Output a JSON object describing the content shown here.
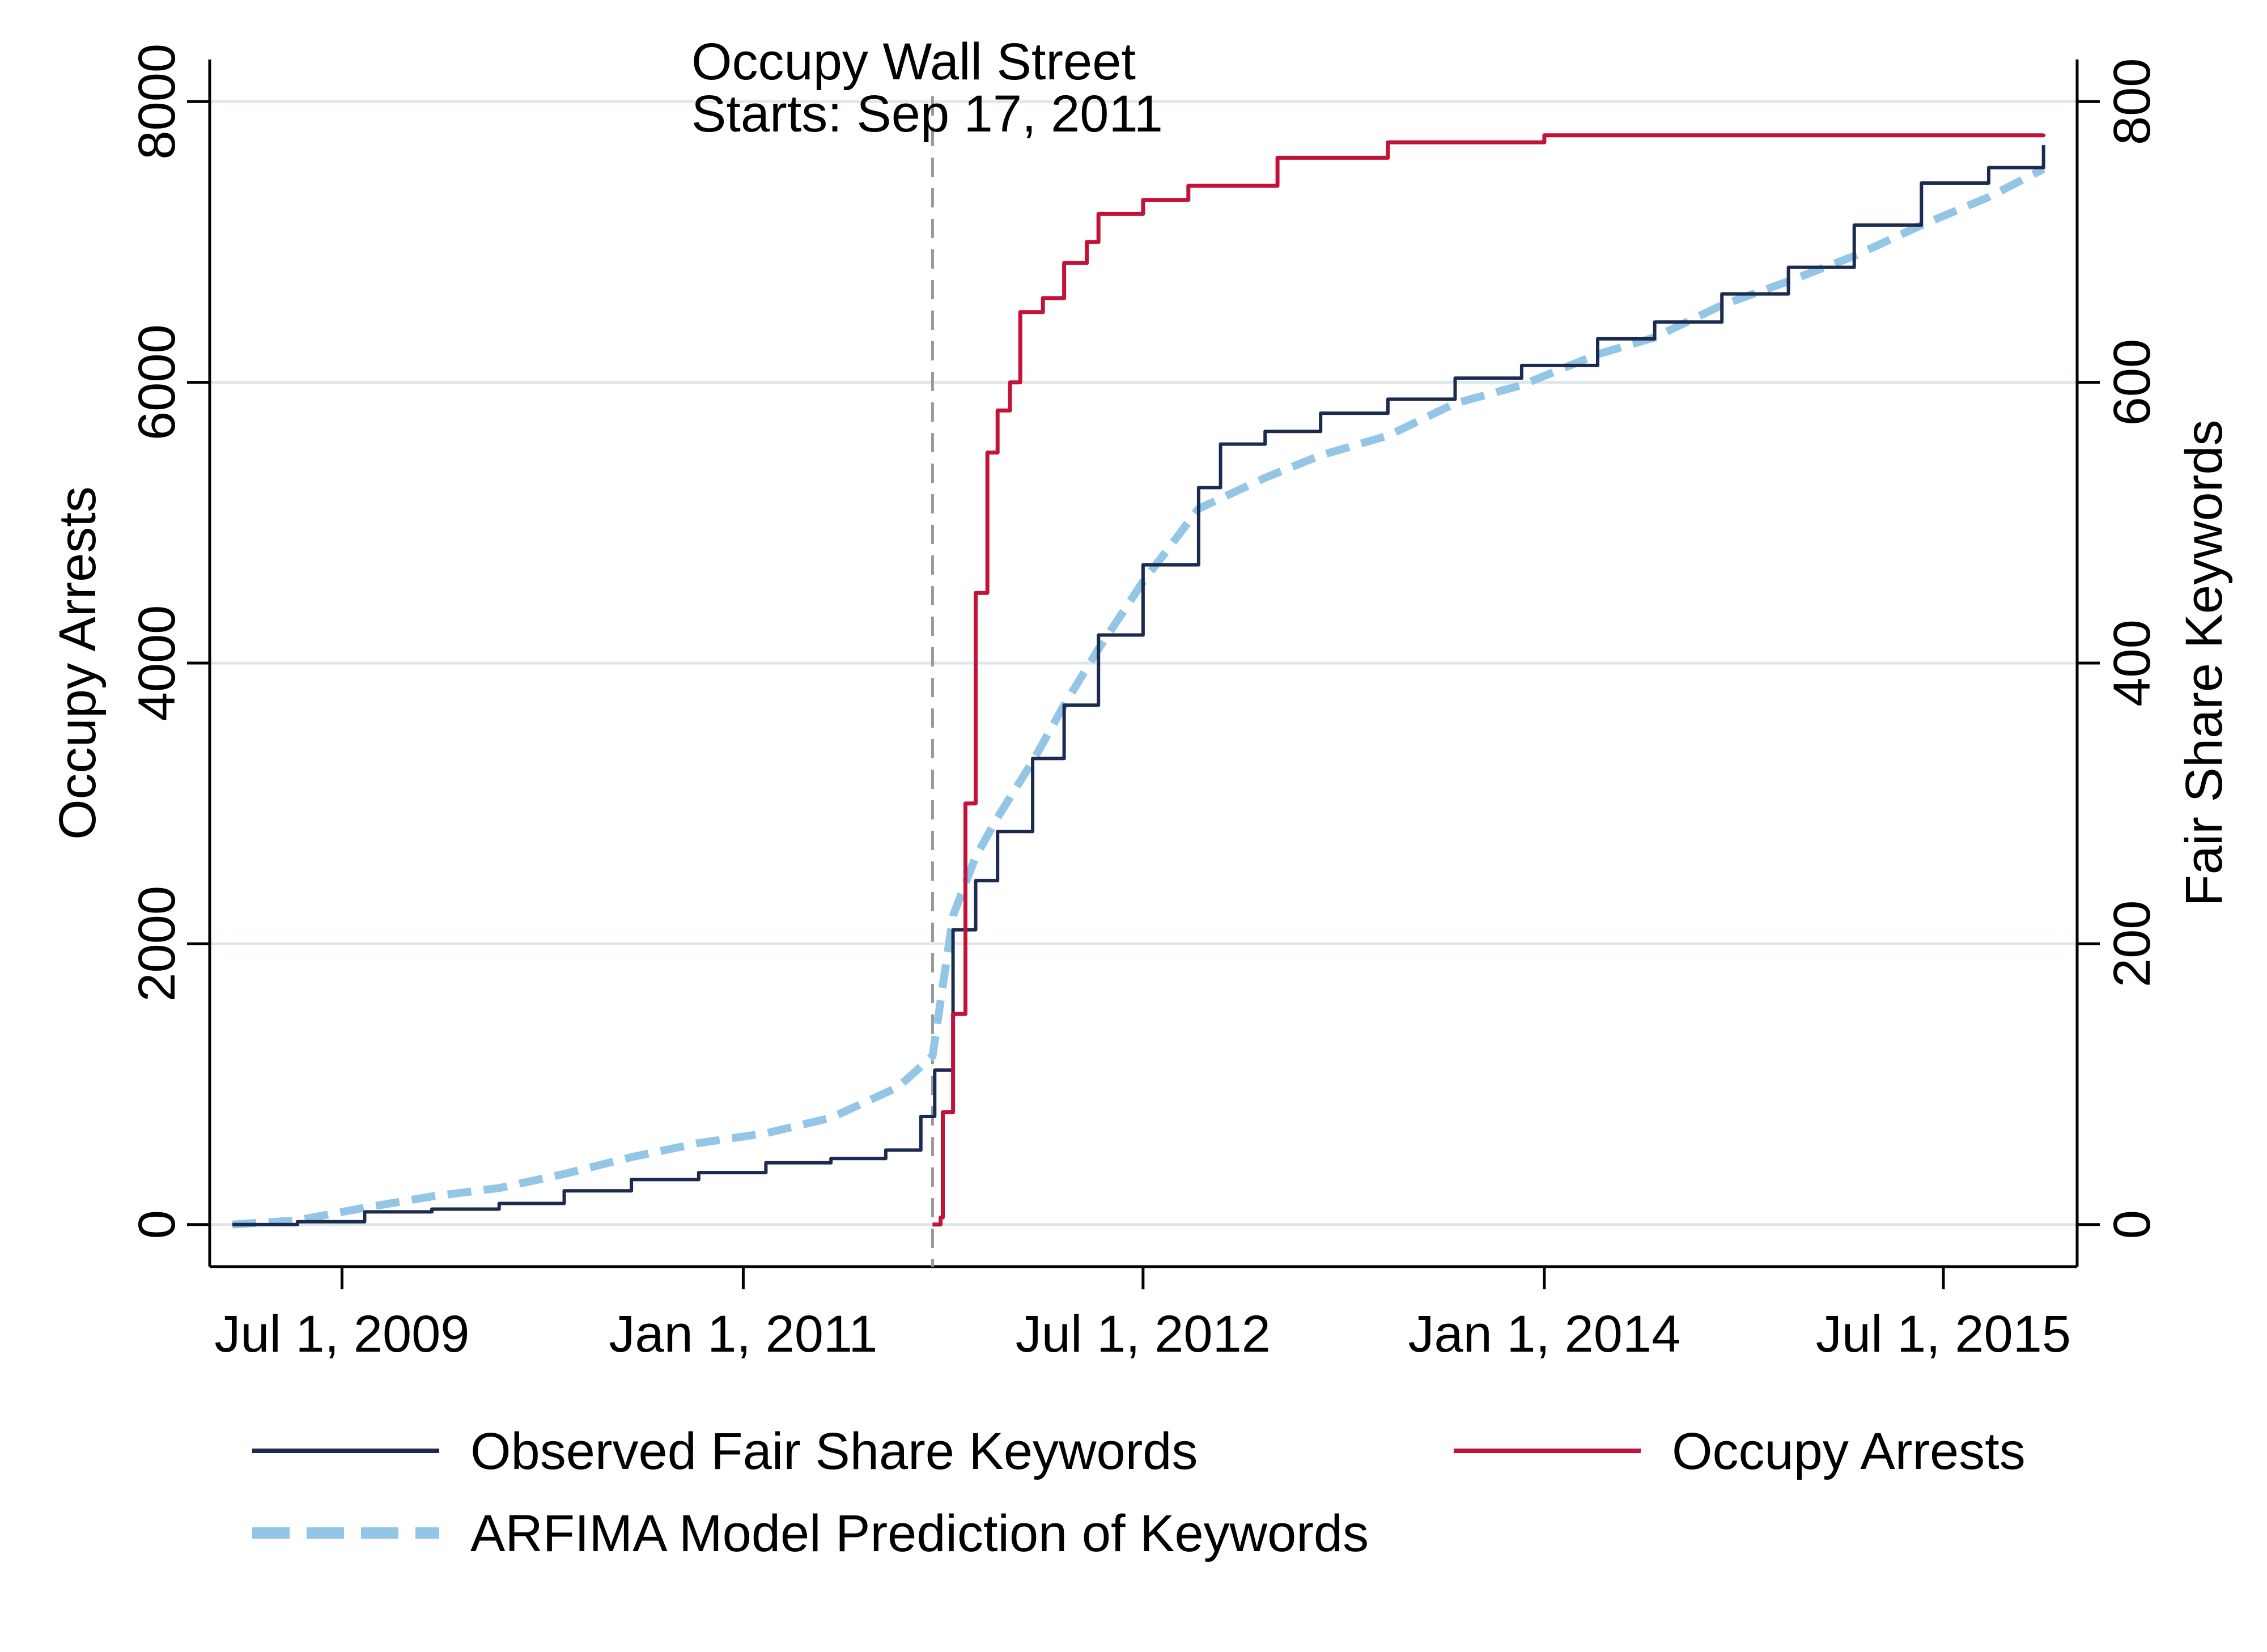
{
  "chart_data": {
    "type": "line",
    "annotation": {
      "line1": "Occupy  Wall  Street",
      "line2": "Starts: Sep 17, 2011",
      "date": "2011-09-17"
    },
    "x_axis": {
      "type": "date",
      "range": [
        "2009-01-01",
        "2015-12-31"
      ],
      "ticks": [
        {
          "date": "2009-07-01",
          "label": "Jul 1, 2009"
        },
        {
          "date": "2011-01-01",
          "label": "Jan 1, 2011"
        },
        {
          "date": "2012-07-01",
          "label": "Jul 1, 2012"
        },
        {
          "date": "2014-01-01",
          "label": "Jan 1, 2014"
        },
        {
          "date": "2015-07-01",
          "label": "Jul 1, 2015"
        }
      ]
    },
    "y_left": {
      "label": "Occupy Arrests",
      "ticks": [
        0,
        2000,
        4000,
        6000,
        8000
      ],
      "range": [
        -300,
        8300
      ]
    },
    "y_right": {
      "label": "Fair Share Keywords",
      "ticks": [
        0,
        200,
        400,
        600,
        800
      ],
      "range": [
        -30,
        830
      ]
    },
    "grid": true,
    "legend_position": "bottom",
    "legend": [
      {
        "series": "observed",
        "label": "Observed Fair Share Keywords"
      },
      {
        "series": "arrests",
        "label": "Occupy Arrests"
      },
      {
        "series": "arfima",
        "label": "ARFIMA Model Prediction of Keywords"
      }
    ],
    "series": [
      {
        "id": "observed",
        "name": "Observed Fair Share Keywords",
        "axis": "right",
        "color": "#1b2a4e",
        "style": "solid",
        "points": [
          [
            "2009-02-01",
            0
          ],
          [
            "2009-05-01",
            2
          ],
          [
            "2009-08-01",
            9
          ],
          [
            "2009-11-01",
            11
          ],
          [
            "2010-02-01",
            15
          ],
          [
            "2010-05-01",
            24
          ],
          [
            "2010-08-01",
            32
          ],
          [
            "2010-11-01",
            37
          ],
          [
            "2011-02-01",
            44
          ],
          [
            "2011-05-01",
            47
          ],
          [
            "2011-07-15",
            53
          ],
          [
            "2011-09-01",
            77
          ],
          [
            "2011-09-20",
            110
          ],
          [
            "2011-10-15",
            210
          ],
          [
            "2011-11-15",
            245
          ],
          [
            "2011-12-15",
            280
          ],
          [
            "2012-02-01",
            332
          ],
          [
            "2012-03-15",
            370
          ],
          [
            "2012-05-01",
            420
          ],
          [
            "2012-07-01",
            470
          ],
          [
            "2012-09-15",
            525
          ],
          [
            "2012-10-15",
            556
          ],
          [
            "2012-12-15",
            565
          ],
          [
            "2013-03-01",
            578
          ],
          [
            "2013-06-01",
            588
          ],
          [
            "2013-09-01",
            603
          ],
          [
            "2013-12-01",
            612
          ],
          [
            "2014-03-15",
            631
          ],
          [
            "2014-06-01",
            643
          ],
          [
            "2014-09-01",
            663
          ],
          [
            "2014-12-01",
            682
          ],
          [
            "2015-03-01",
            712
          ],
          [
            "2015-06-01",
            742
          ],
          [
            "2015-09-01",
            753
          ],
          [
            "2015-11-15",
            769
          ]
        ]
      },
      {
        "id": "arrests",
        "name": "Occupy Arrests",
        "axis": "left",
        "color": "#c2123a",
        "style": "solid",
        "points": [
          [
            "2011-09-17",
            0
          ],
          [
            "2011-09-28",
            50
          ],
          [
            "2011-10-01",
            800
          ],
          [
            "2011-10-15",
            1500
          ],
          [
            "2011-11-01",
            3000
          ],
          [
            "2011-11-15",
            4500
          ],
          [
            "2011-12-01",
            5500
          ],
          [
            "2011-12-15",
            5800
          ],
          [
            "2012-01-01",
            6000
          ],
          [
            "2012-01-15",
            6500
          ],
          [
            "2012-02-15",
            6600
          ],
          [
            "2012-03-15",
            6850
          ],
          [
            "2012-04-15",
            7000
          ],
          [
            "2012-05-01",
            7200
          ],
          [
            "2012-07-01",
            7300
          ],
          [
            "2012-09-01",
            7400
          ],
          [
            "2013-01-01",
            7600
          ],
          [
            "2013-06-01",
            7710
          ],
          [
            "2014-01-01",
            7760
          ],
          [
            "2015-11-15",
            7770
          ]
        ]
      },
      {
        "id": "arfima",
        "name": "ARFIMA Model Prediction of Keywords",
        "axis": "right",
        "color": "#93c6e6",
        "style": "dashed",
        "points": [
          [
            "2009-02-01",
            0
          ],
          [
            "2009-05-01",
            3
          ],
          [
            "2009-08-01",
            12
          ],
          [
            "2009-11-01",
            20
          ],
          [
            "2010-02-01",
            26
          ],
          [
            "2010-05-01",
            36
          ],
          [
            "2010-08-01",
            48
          ],
          [
            "2010-11-01",
            58
          ],
          [
            "2011-02-01",
            65
          ],
          [
            "2011-05-01",
            76
          ],
          [
            "2011-08-01",
            98
          ],
          [
            "2011-09-17",
            120
          ],
          [
            "2011-10-15",
            220
          ],
          [
            "2011-11-15",
            262
          ],
          [
            "2011-12-15",
            290
          ],
          [
            "2012-02-01",
            330
          ],
          [
            "2012-03-15",
            370
          ],
          [
            "2012-05-01",
            410
          ],
          [
            "2012-07-01",
            458
          ],
          [
            "2012-09-15",
            510
          ],
          [
            "2012-12-15",
            532
          ],
          [
            "2013-03-01",
            548
          ],
          [
            "2013-06-01",
            562
          ],
          [
            "2013-09-01",
            585
          ],
          [
            "2013-12-01",
            598
          ],
          [
            "2014-03-15",
            620
          ],
          [
            "2014-06-01",
            632
          ],
          [
            "2014-09-01",
            655
          ],
          [
            "2014-12-01",
            672
          ],
          [
            "2015-03-01",
            690
          ],
          [
            "2015-06-01",
            712
          ],
          [
            "2015-09-01",
            732
          ],
          [
            "2015-11-15",
            752
          ]
        ]
      }
    ]
  }
}
